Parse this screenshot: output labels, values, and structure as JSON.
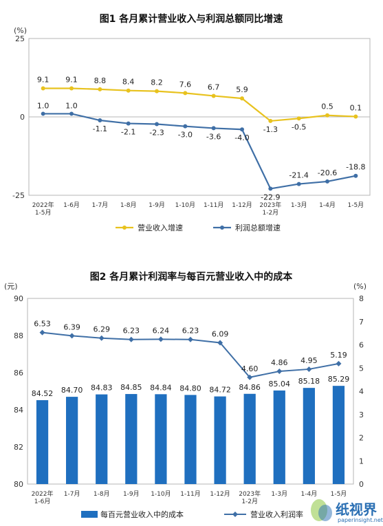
{
  "chart_data": [
    {
      "type": "line",
      "title": "图1  各月累计营业收入与利润总额同比增速",
      "y_unit": "(%)",
      "ylim": [
        -25,
        25
      ],
      "yticks": [
        25,
        0,
        -25
      ],
      "categories": [
        [
          "2022年",
          "1-5月"
        ],
        [
          "1-6月"
        ],
        [
          "1-7月"
        ],
        [
          "1-8月"
        ],
        [
          "1-9月"
        ],
        [
          "1-10月"
        ],
        [
          "1-11月"
        ],
        [
          "1-12月"
        ],
        [
          "2023年",
          "1-2月"
        ],
        [
          "1-3月"
        ],
        [
          "1-4月"
        ],
        [
          "1-5月"
        ]
      ],
      "series": [
        {
          "name": "营业收入增速",
          "color": "#e8c21e",
          "values": [
            9.1,
            9.1,
            8.8,
            8.4,
            8.2,
            7.6,
            6.7,
            5.9,
            -1.3,
            -0.5,
            0.5,
            0.1
          ],
          "labels": [
            "9.1",
            "9.1",
            "8.8",
            "8.4",
            "8.2",
            "7.6",
            "6.7",
            "5.9",
            "-1.3",
            "-0.5",
            "0.5",
            "0.1"
          ]
        },
        {
          "name": "利润总额增速",
          "color": "#3f6fa6",
          "values": [
            1.0,
            1.0,
            -1.1,
            -2.1,
            -2.3,
            -3.0,
            -3.6,
            -4.0,
            -22.9,
            -21.4,
            -20.6,
            -18.8
          ],
          "labels": [
            "1.0",
            "1.0",
            "-1.1",
            "-2.1",
            "-2.3",
            "-3.0",
            "-3.6",
            "-4.0",
            "-22.9",
            "-21.4",
            "-20.6",
            "-18.8"
          ]
        }
      ],
      "grid": false,
      "legend_position": "bottom"
    },
    {
      "type": "bar",
      "title": "图2  各月累计利润率与每百元营业收入中的成本",
      "y_left_unit": "(元)",
      "y_right_unit": "(%)",
      "ylim_left": [
        80,
        90
      ],
      "yticks_left": [
        80,
        82,
        84,
        86,
        88,
        90
      ],
      "ylim_right": [
        0,
        8
      ],
      "yticks_right": [
        0,
        1,
        2,
        3,
        4,
        5,
        6,
        7,
        8
      ],
      "categories": [
        [
          "2022年",
          "1-6月"
        ],
        [
          "1-7月"
        ],
        [
          "1-8月"
        ],
        [
          "1-9月"
        ],
        [
          "1-10月"
        ],
        [
          "1-11月"
        ],
        [
          "1-12月"
        ],
        [
          "2023年",
          "1-2月"
        ],
        [
          "1-3月"
        ],
        [
          "1-4月"
        ],
        [
          "1-5月"
        ]
      ],
      "series": [
        {
          "name": "每百元营业收入中的成本",
          "type": "bar",
          "axis": "left",
          "color": "#1f6fbf",
          "values": [
            84.52,
            84.7,
            84.83,
            84.85,
            84.84,
            84.8,
            84.72,
            84.86,
            85.04,
            85.18,
            85.29
          ],
          "labels": [
            "84.52",
            "84.70",
            "84.83",
            "84.85",
            "84.84",
            "84.80",
            "84.72",
            "84.86",
            "85.04",
            "85.18",
            "85.29"
          ]
        },
        {
          "name": "营业收入利润率",
          "type": "line",
          "axis": "right",
          "color": "#3f6fa6",
          "values": [
            6.53,
            6.39,
            6.29,
            6.23,
            6.24,
            6.23,
            6.09,
            4.6,
            4.86,
            4.95,
            5.19
          ],
          "labels": [
            "6.53",
            "6.39",
            "6.29",
            "6.23",
            "6.24",
            "6.23",
            "6.09",
            "4.60",
            "4.86",
            "4.95",
            "5.19"
          ]
        }
      ],
      "grid": false,
      "legend_position": "bottom"
    }
  ],
  "watermark": {
    "name": "纸视界",
    "url": "paperinsight.net"
  }
}
